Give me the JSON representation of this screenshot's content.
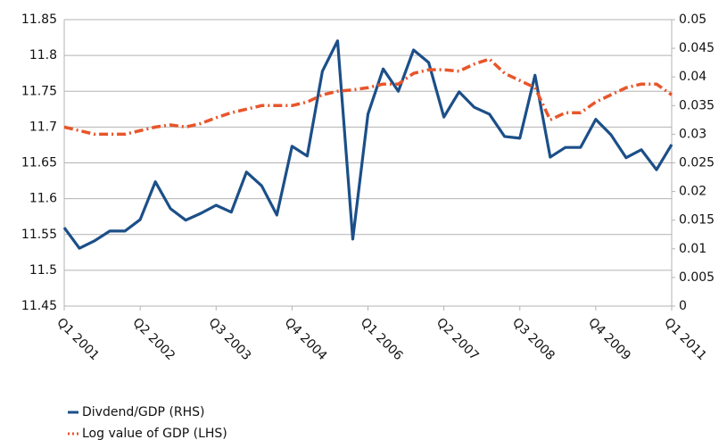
{
  "chart_data": {
    "type": "line",
    "categories": [
      "Q1 2001",
      null,
      null,
      null,
      null,
      "Q2 2002",
      null,
      null,
      null,
      null,
      "Q3 2003",
      null,
      null,
      null,
      null,
      "Q4 2004",
      null,
      null,
      null,
      null,
      "Q1 2006",
      null,
      null,
      null,
      null,
      "Q2 2007",
      null,
      null,
      null,
      null,
      "Q3 2008",
      null,
      null,
      null,
      null,
      "Q4 2009",
      null,
      null,
      null,
      null,
      "Q1 2011"
    ],
    "series": [
      {
        "name": "Divdend/GDP (RHS)",
        "color": "#1b4f88",
        "axis": "y2",
        "dashed": false,
        "values": [
          0.0137,
          0.0101,
          0.0114,
          0.0131,
          0.0131,
          0.0151,
          0.0217,
          0.017,
          0.015,
          0.0162,
          0.0176,
          0.0164,
          0.0234,
          0.021,
          0.0159,
          0.0279,
          0.0262,
          0.041,
          0.0463,
          0.0117,
          0.0335,
          0.0414,
          0.0375,
          0.0447,
          0.0425,
          0.033,
          0.0374,
          0.0347,
          0.0335,
          0.0296,
          0.0293,
          0.0403,
          0.026,
          0.0277,
          0.0277,
          0.0326,
          0.0299,
          0.0259,
          0.0273,
          0.0238,
          0.0282
        ]
      },
      {
        "name": "Log value of GDP (LHS)",
        "color": "#e8552a",
        "axis": "y",
        "dashed": true,
        "values": [
          11.7,
          11.695,
          11.69,
          11.69,
          11.69,
          11.695,
          11.7,
          11.703,
          11.7,
          11.705,
          11.713,
          11.72,
          11.725,
          11.73,
          11.73,
          11.73,
          11.735,
          11.745,
          11.75,
          11.752,
          11.755,
          11.76,
          11.76,
          11.775,
          11.78,
          11.78,
          11.778,
          11.788,
          11.795,
          11.775,
          11.765,
          11.755,
          11.71,
          11.72,
          11.72,
          11.735,
          11.745,
          11.755,
          11.76,
          11.76,
          11.745
        ]
      }
    ],
    "ylim": [
      11.45,
      11.85
    ],
    "yticks": [
      11.45,
      11.5,
      11.55,
      11.6,
      11.65,
      11.7,
      11.75,
      11.8,
      11.85
    ],
    "y2lim": [
      0,
      0.05
    ],
    "y2ticks": [
      0,
      0.005,
      0.01,
      0.015,
      0.02,
      0.025,
      0.03,
      0.035,
      0.04,
      0.045,
      0.05
    ],
    "grid": true,
    "legend": "bottom-left"
  }
}
